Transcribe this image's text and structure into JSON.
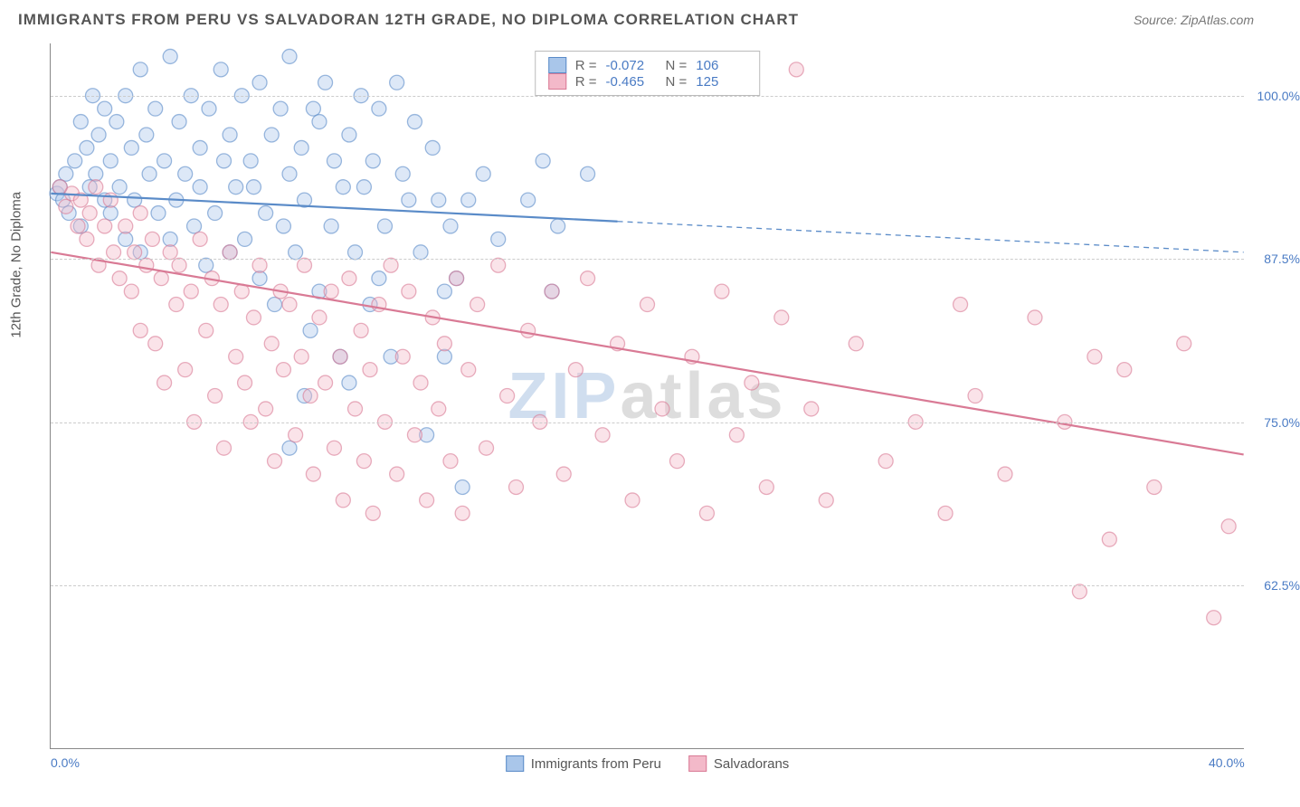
{
  "header": {
    "title": "IMMIGRANTS FROM PERU VS SALVADORAN 12TH GRADE, NO DIPLOMA CORRELATION CHART",
    "source": "Source: ZipAtlas.com"
  },
  "chart": {
    "type": "scatter",
    "ylabel": "12th Grade, No Diploma",
    "xlim": [
      0,
      40
    ],
    "ylim": [
      50,
      104
    ],
    "xticks": [
      {
        "v": 0,
        "label": "0.0%"
      },
      {
        "v": 40,
        "label": "40.0%"
      }
    ],
    "yticks": [
      {
        "v": 62.5,
        "label": "62.5%"
      },
      {
        "v": 75,
        "label": "75.0%"
      },
      {
        "v": 87.5,
        "label": "87.5%"
      },
      {
        "v": 100,
        "label": "100.0%"
      }
    ],
    "grid_color": "#cccccc",
    "background_color": "#ffffff",
    "marker_radius": 8,
    "marker_opacity": 0.4,
    "marker_stroke_width": 1.3,
    "line_width": 2.2,
    "dash_pattern": "6 5",
    "series": [
      {
        "name": "Immigrants from Peru",
        "color": "#6a9bd8",
        "fill": "#a9c6ea",
        "stroke": "#5a8bc8",
        "R": "-0.072",
        "N": "106",
        "regression": {
          "x1": 0,
          "y1": 92.5,
          "x2": 40,
          "y2": 88.0,
          "solid_until": 19
        },
        "points": [
          [
            0.2,
            92.5
          ],
          [
            0.3,
            93.0
          ],
          [
            0.4,
            92.0
          ],
          [
            0.5,
            94.0
          ],
          [
            0.6,
            91.0
          ],
          [
            0.8,
            95.0
          ],
          [
            1.0,
            98.0
          ],
          [
            1.0,
            90.0
          ],
          [
            1.2,
            96.0
          ],
          [
            1.3,
            93.0
          ],
          [
            1.4,
            100.0
          ],
          [
            1.5,
            94.0
          ],
          [
            1.6,
            97.0
          ],
          [
            1.8,
            92.0
          ],
          [
            1.8,
            99.0
          ],
          [
            2.0,
            95.0
          ],
          [
            2.0,
            91.0
          ],
          [
            2.2,
            98.0
          ],
          [
            2.3,
            93.0
          ],
          [
            2.5,
            100.0
          ],
          [
            2.5,
            89.0
          ],
          [
            2.7,
            96.0
          ],
          [
            2.8,
            92.0
          ],
          [
            3.0,
            102.0
          ],
          [
            3.0,
            88.0
          ],
          [
            3.2,
            97.0
          ],
          [
            3.3,
            94.0
          ],
          [
            3.5,
            99.0
          ],
          [
            3.6,
            91.0
          ],
          [
            3.8,
            95.0
          ],
          [
            4.0,
            103.0
          ],
          [
            4.0,
            89.0
          ],
          [
            4.2,
            92.0
          ],
          [
            4.3,
            98.0
          ],
          [
            4.5,
            94.0
          ],
          [
            4.7,
            100.0
          ],
          [
            4.8,
            90.0
          ],
          [
            5.0,
            96.0
          ],
          [
            5.0,
            93.0
          ],
          [
            5.2,
            87.0
          ],
          [
            5.3,
            99.0
          ],
          [
            5.5,
            91.0
          ],
          [
            5.7,
            102.0
          ],
          [
            5.8,
            95.0
          ],
          [
            6.0,
            97.0
          ],
          [
            6.0,
            88.0
          ],
          [
            6.2,
            93.0
          ],
          [
            6.4,
            100.0
          ],
          [
            6.5,
            89.0
          ],
          [
            6.7,
            95.0
          ],
          [
            6.8,
            93.0
          ],
          [
            7.0,
            101.0
          ],
          [
            7.0,
            86.0
          ],
          [
            7.2,
            91.0
          ],
          [
            7.4,
            97.0
          ],
          [
            7.5,
            84.0
          ],
          [
            7.7,
            99.0
          ],
          [
            7.8,
            90.0
          ],
          [
            8.0,
            103.0
          ],
          [
            8.0,
            94.0
          ],
          [
            8.2,
            88.0
          ],
          [
            8.4,
            96.0
          ],
          [
            8.5,
            92.0
          ],
          [
            8.7,
            82.0
          ],
          [
            8.8,
            99.0
          ],
          [
            9.0,
            98.0
          ],
          [
            9.0,
            85.0
          ],
          [
            9.2,
            101.0
          ],
          [
            9.4,
            90.0
          ],
          [
            9.5,
            95.0
          ],
          [
            9.7,
            80.0
          ],
          [
            9.8,
            93.0
          ],
          [
            10.0,
            97.0
          ],
          [
            10.0,
            78.0
          ],
          [
            10.2,
            88.0
          ],
          [
            10.4,
            100.0
          ],
          [
            10.5,
            93.0
          ],
          [
            10.7,
            84.0
          ],
          [
            10.8,
            95.0
          ],
          [
            11.0,
            99.0
          ],
          [
            11.0,
            86.0
          ],
          [
            11.2,
            90.0
          ],
          [
            11.4,
            80.0
          ],
          [
            11.6,
            101.0
          ],
          [
            11.8,
            94.0
          ],
          [
            12.0,
            92.0
          ],
          [
            12.2,
            98.0
          ],
          [
            12.4,
            88.0
          ],
          [
            12.6,
            74.0
          ],
          [
            12.8,
            96.0
          ],
          [
            13.0,
            92.0
          ],
          [
            13.2,
            85.0
          ],
          [
            13.4,
            90.0
          ],
          [
            13.6,
            86.0
          ],
          [
            13.8,
            70.0
          ],
          [
            14.0,
            92.0
          ],
          [
            14.5,
            94.0
          ],
          [
            15.0,
            89.0
          ],
          [
            16.0,
            92.0
          ],
          [
            16.5,
            95.0
          ],
          [
            17.0,
            90.0
          ],
          [
            18.0,
            94.0
          ],
          [
            16.8,
            85.0
          ],
          [
            13.2,
            80.0
          ],
          [
            8.0,
            73.0
          ],
          [
            8.5,
            77.0
          ]
        ]
      },
      {
        "name": "Salvadorans",
        "color": "#e68aa5",
        "fill": "#f3b9c9",
        "stroke": "#d97a95",
        "R": "-0.465",
        "N": "125",
        "regression": {
          "x1": 0,
          "y1": 88.0,
          "x2": 40,
          "y2": 72.5,
          "solid_until": 40
        },
        "points": [
          [
            0.3,
            93.0
          ],
          [
            0.5,
            91.5
          ],
          [
            0.7,
            92.5
          ],
          [
            0.9,
            90.0
          ],
          [
            1.0,
            92.0
          ],
          [
            1.2,
            89.0
          ],
          [
            1.3,
            91.0
          ],
          [
            1.5,
            93.0
          ],
          [
            1.6,
            87.0
          ],
          [
            1.8,
            90.0
          ],
          [
            2.0,
            92.0
          ],
          [
            2.1,
            88.0
          ],
          [
            2.3,
            86.0
          ],
          [
            2.5,
            90.0
          ],
          [
            2.7,
            85.0
          ],
          [
            2.8,
            88.0
          ],
          [
            3.0,
            91.0
          ],
          [
            3.0,
            82.0
          ],
          [
            3.2,
            87.0
          ],
          [
            3.4,
            89.0
          ],
          [
            3.5,
            81.0
          ],
          [
            3.7,
            86.0
          ],
          [
            3.8,
            78.0
          ],
          [
            4.0,
            88.0
          ],
          [
            4.2,
            84.0
          ],
          [
            4.3,
            87.0
          ],
          [
            4.5,
            79.0
          ],
          [
            4.7,
            85.0
          ],
          [
            4.8,
            75.0
          ],
          [
            5.0,
            89.0
          ],
          [
            5.2,
            82.0
          ],
          [
            5.4,
            86.0
          ],
          [
            5.5,
            77.0
          ],
          [
            5.7,
            84.0
          ],
          [
            5.8,
            73.0
          ],
          [
            6.0,
            88.0
          ],
          [
            6.2,
            80.0
          ],
          [
            6.4,
            85.0
          ],
          [
            6.5,
            78.0
          ],
          [
            6.7,
            75.0
          ],
          [
            6.8,
            83.0
          ],
          [
            7.0,
            87.0
          ],
          [
            7.2,
            76.0
          ],
          [
            7.4,
            81.0
          ],
          [
            7.5,
            72.0
          ],
          [
            7.7,
            85.0
          ],
          [
            7.8,
            79.0
          ],
          [
            8.0,
            84.0
          ],
          [
            8.2,
            74.0
          ],
          [
            8.4,
            80.0
          ],
          [
            8.5,
            87.0
          ],
          [
            8.7,
            77.0
          ],
          [
            8.8,
            71.0
          ],
          [
            9.0,
            83.0
          ],
          [
            9.2,
            78.0
          ],
          [
            9.4,
            85.0
          ],
          [
            9.5,
            73.0
          ],
          [
            9.7,
            80.0
          ],
          [
            9.8,
            69.0
          ],
          [
            10.0,
            86.0
          ],
          [
            10.2,
            76.0
          ],
          [
            10.4,
            82.0
          ],
          [
            10.5,
            72.0
          ],
          [
            10.7,
            79.0
          ],
          [
            10.8,
            68.0
          ],
          [
            11.0,
            84.0
          ],
          [
            11.2,
            75.0
          ],
          [
            11.4,
            87.0
          ],
          [
            11.6,
            71.0
          ],
          [
            11.8,
            80.0
          ],
          [
            12.0,
            85.0
          ],
          [
            12.2,
            74.0
          ],
          [
            12.4,
            78.0
          ],
          [
            12.6,
            69.0
          ],
          [
            12.8,
            83.0
          ],
          [
            13.0,
            76.0
          ],
          [
            13.2,
            81.0
          ],
          [
            13.4,
            72.0
          ],
          [
            13.6,
            86.0
          ],
          [
            13.8,
            68.0
          ],
          [
            14.0,
            79.0
          ],
          [
            14.3,
            84.0
          ],
          [
            14.6,
            73.0
          ],
          [
            15.0,
            87.0
          ],
          [
            15.3,
            77.0
          ],
          [
            15.6,
            70.0
          ],
          [
            16.0,
            82.0
          ],
          [
            16.4,
            75.0
          ],
          [
            16.8,
            85.0
          ],
          [
            17.2,
            71.0
          ],
          [
            17.6,
            79.0
          ],
          [
            18.0,
            86.0
          ],
          [
            18.5,
            74.0
          ],
          [
            19.0,
            81.0
          ],
          [
            19.5,
            69.0
          ],
          [
            20.0,
            84.0
          ],
          [
            20.5,
            76.0
          ],
          [
            21.0,
            72.0
          ],
          [
            21.5,
            80.0
          ],
          [
            22.0,
            68.0
          ],
          [
            22.5,
            85.0
          ],
          [
            23.0,
            74.0
          ],
          [
            23.5,
            78.0
          ],
          [
            24.0,
            70.0
          ],
          [
            24.5,
            83.0
          ],
          [
            25.0,
            102.0
          ],
          [
            25.5,
            76.0
          ],
          [
            26.0,
            69.0
          ],
          [
            27.0,
            81.0
          ],
          [
            28.0,
            72.0
          ],
          [
            29.0,
            75.0
          ],
          [
            30.0,
            68.0
          ],
          [
            30.5,
            84.0
          ],
          [
            31.0,
            77.0
          ],
          [
            32.0,
            71.0
          ],
          [
            33.0,
            83.0
          ],
          [
            34.0,
            75.0
          ],
          [
            34.5,
            62.0
          ],
          [
            35.0,
            80.0
          ],
          [
            35.5,
            66.0
          ],
          [
            36.0,
            79.0
          ],
          [
            37.0,
            70.0
          ],
          [
            38.0,
            81.0
          ],
          [
            39.0,
            60.0
          ],
          [
            39.5,
            67.0
          ]
        ]
      }
    ],
    "watermark_z": "ZIP",
    "watermark_rest": "atlas"
  }
}
